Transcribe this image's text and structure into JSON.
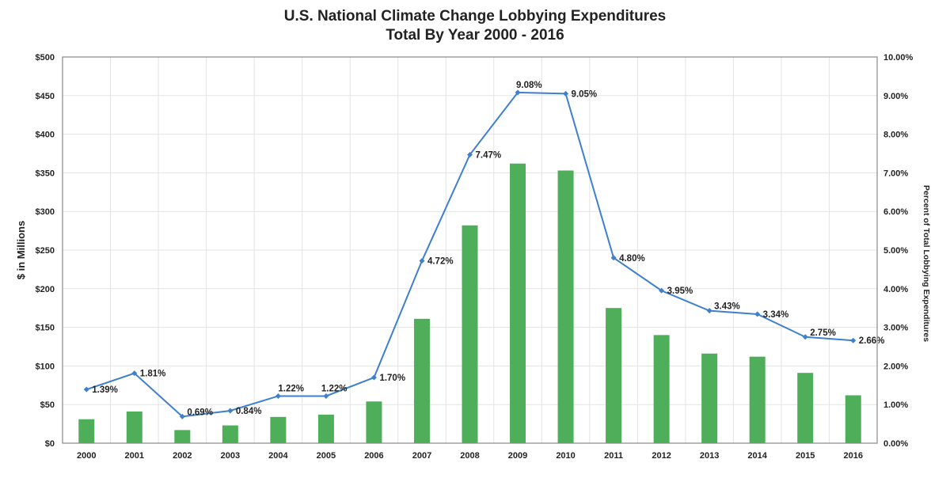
{
  "chart_data": {
    "type": "bar+line",
    "title": "U.S. National Climate Change Lobbying Expenditures",
    "subtitle": "Total By Year 2000 - 2016",
    "ylabel": "$ in Millions",
    "y2label": "Percent of Total Lobbying Expenditures",
    "categories": [
      "2000",
      "2001",
      "2002",
      "2003",
      "2004",
      "2005",
      "2006",
      "2007",
      "2008",
      "2009",
      "2010",
      "2011",
      "2012",
      "2013",
      "2014",
      "2015",
      "2016"
    ],
    "ylim": [
      0,
      500
    ],
    "y2lim": [
      0,
      10
    ],
    "yticks": [
      "$0",
      "$50",
      "$100",
      "$150",
      "$200",
      "$250",
      "$300",
      "$350",
      "$400",
      "$450",
      "$500"
    ],
    "y2ticks": [
      "0.00%",
      "1.00%",
      "2.00%",
      "3.00%",
      "4.00%",
      "5.00%",
      "6.00%",
      "7.00%",
      "8.00%",
      "9.00%",
      "10.00%"
    ],
    "grid": true,
    "series": [
      {
        "type": "bar",
        "axis": "left",
        "color": "#4fae5a",
        "values": [
          31,
          41,
          17,
          23,
          34,
          37,
          54,
          161,
          282,
          362,
          353,
          175,
          140,
          116,
          112,
          91,
          62
        ]
      },
      {
        "type": "line",
        "axis": "right",
        "color": "#3f7fcf",
        "values": [
          1.39,
          1.81,
          0.69,
          0.84,
          1.22,
          1.22,
          1.7,
          4.72,
          7.47,
          9.08,
          9.05,
          4.8,
          3.95,
          3.43,
          3.34,
          2.75,
          2.66
        ],
        "labels": [
          "1.39%",
          "1.81%",
          "0.69%",
          "0.84%",
          "1.22%",
          "1.22%",
          "1.70%",
          "4.72%",
          "7.47%",
          "9.08%",
          "9.05%",
          "4.80%",
          "3.95%",
          "3.43%",
          "3.34%",
          "2.75%",
          "2.66%"
        ]
      }
    ]
  }
}
